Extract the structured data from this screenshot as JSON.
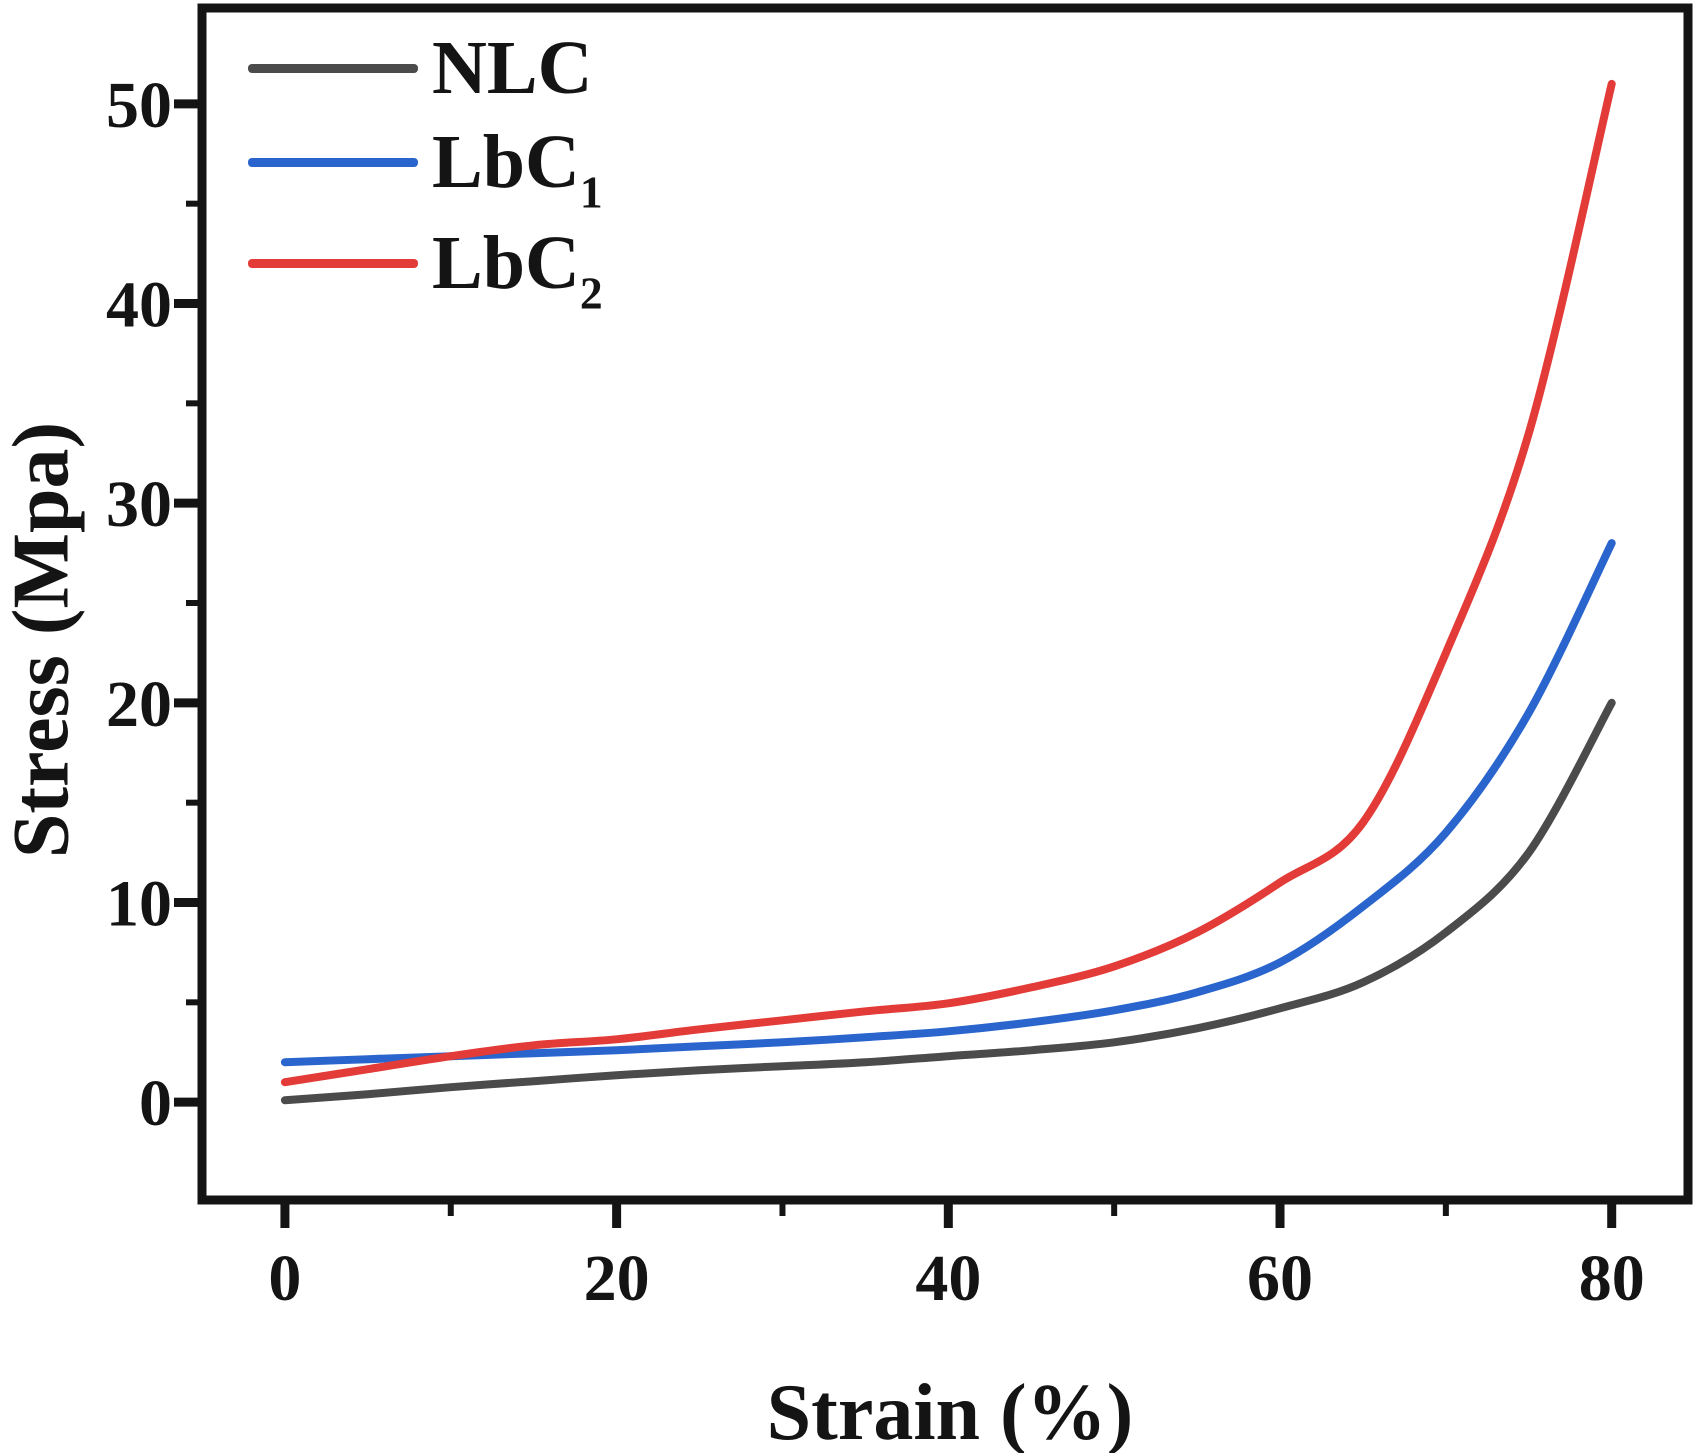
{
  "figure": {
    "background": "#ffffff",
    "axis_color": "#141414"
  },
  "axis_titles": {
    "x": "Strain (%)",
    "y": "Stress (Mpa)"
  },
  "legend": {
    "position": "top-left-inside",
    "items": [
      {
        "text": "NLC",
        "sub": ""
      },
      {
        "text": "LbC",
        "sub": "1"
      },
      {
        "text": "LbC",
        "sub": "2"
      }
    ]
  },
  "chart_data": {
    "type": "line",
    "title": "",
    "xlabel": "Strain (%)",
    "ylabel": "Stress (Mpa)",
    "xlim": [
      -5,
      84.6
    ],
    "ylim": [
      -4.9,
      54.8
    ],
    "grid": false,
    "legend_position": "upper left",
    "x_ticks": {
      "major": [
        0,
        20,
        40,
        60,
        80
      ],
      "minor": [
        10,
        30,
        50,
        70
      ],
      "labels": [
        "0",
        "20",
        "40",
        "60",
        "80"
      ]
    },
    "y_ticks": {
      "major": [
        0,
        10,
        20,
        30,
        40,
        50
      ],
      "minor": [
        5,
        15,
        25,
        35,
        45
      ],
      "labels": [
        "0",
        "10",
        "20",
        "30",
        "40",
        "50"
      ]
    },
    "x": [
      0,
      5,
      10,
      15,
      20,
      25,
      30,
      35,
      40,
      45,
      50,
      55,
      60,
      65,
      70,
      75,
      80
    ],
    "series": [
      {
        "name": "NLC",
        "color": "#4b4b4b",
        "values": [
          0.1,
          0.4,
          0.75,
          1.05,
          1.35,
          1.6,
          1.8,
          2.0,
          2.3,
          2.6,
          3.0,
          3.7,
          4.7,
          6.0,
          8.5,
          12.5,
          20.0
        ]
      },
      {
        "name": "LbC1",
        "color": "#2a65cd",
        "values": [
          2.0,
          2.15,
          2.3,
          2.45,
          2.6,
          2.8,
          3.0,
          3.25,
          3.55,
          4.0,
          4.6,
          5.5,
          7.0,
          9.8,
          13.5,
          19.5,
          28.0
        ]
      },
      {
        "name": "LbC2",
        "color": "#e23b38",
        "values": [
          1.0,
          1.65,
          2.3,
          2.85,
          3.15,
          3.65,
          4.1,
          4.55,
          4.95,
          5.75,
          6.8,
          8.5,
          11.0,
          14.0,
          22.5,
          33.5,
          51.0
        ]
      }
    ]
  }
}
